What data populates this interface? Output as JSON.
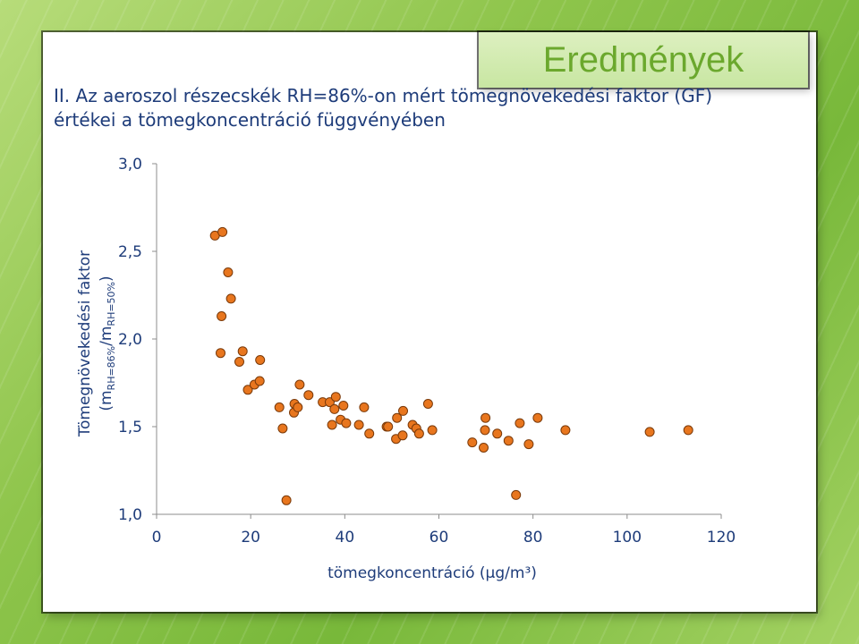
{
  "slide": {
    "title": "Eredmények",
    "heading_line1": "II. Az aeroszol részecskék RH=86%-on mért tömegnövekedési faktor (GF)",
    "heading_line2": "értékei a tömegkoncentráció függvényében"
  },
  "colors": {
    "marker_fill": "#e8761e",
    "marker_stroke": "#7a3a0a",
    "heading": "#1e3c7a",
    "title": "#6ba82d"
  },
  "chart_data": {
    "type": "scatter",
    "xlabel": "tömegkoncentráció (μg/m³)",
    "ylabel_main": "Tömegnövekedési faktor",
    "ylabel_paren": "(m",
    "ylabel_sub1": "RH=86%",
    "ylabel_mid": "/m",
    "ylabel_sub2": "RH=50%",
    "ylabel_close": ")",
    "xlim": [
      0,
      120
    ],
    "ylim": [
      1.0,
      3.0
    ],
    "x_ticks": [
      "0",
      "20",
      "40",
      "60",
      "80",
      "100",
      "120"
    ],
    "y_ticks": [
      "1,0",
      "1,5",
      "2,0",
      "2,5",
      "3,0"
    ],
    "grid": false,
    "points": [
      [
        12.4,
        2.59
      ],
      [
        14.0,
        2.61
      ],
      [
        13.6,
        1.92
      ],
      [
        13.8,
        2.13
      ],
      [
        15.2,
        2.38
      ],
      [
        15.8,
        2.23
      ],
      [
        17.6,
        1.87
      ],
      [
        18.3,
        1.93
      ],
      [
        19.4,
        1.71
      ],
      [
        20.8,
        1.74
      ],
      [
        21.9,
        1.76
      ],
      [
        22.0,
        1.88
      ],
      [
        26.1,
        1.61
      ],
      [
        26.8,
        1.49
      ],
      [
        27.6,
        1.08
      ],
      [
        29.2,
        1.58
      ],
      [
        29.3,
        1.63
      ],
      [
        30.0,
        1.61
      ],
      [
        30.4,
        1.74
      ],
      [
        32.3,
        1.68
      ],
      [
        35.3,
        1.64
      ],
      [
        36.8,
        1.64
      ],
      [
        37.3,
        1.51
      ],
      [
        37.8,
        1.6
      ],
      [
        38.1,
        1.67
      ],
      [
        39.1,
        1.54
      ],
      [
        39.7,
        1.62
      ],
      [
        40.3,
        1.52
      ],
      [
        43.0,
        1.51
      ],
      [
        44.1,
        1.61
      ],
      [
        45.2,
        1.46
      ],
      [
        48.9,
        1.5
      ],
      [
        49.2,
        1.5
      ],
      [
        50.9,
        1.43
      ],
      [
        51.1,
        1.55
      ],
      [
        52.3,
        1.45
      ],
      [
        52.4,
        1.59
      ],
      [
        54.4,
        1.51
      ],
      [
        55.2,
        1.49
      ],
      [
        55.8,
        1.46
      ],
      [
        57.7,
        1.63
      ],
      [
        58.6,
        1.48
      ],
      [
        67.1,
        1.41
      ],
      [
        69.5,
        1.38
      ],
      [
        69.8,
        1.48
      ],
      [
        69.9,
        1.55
      ],
      [
        72.4,
        1.46
      ],
      [
        74.8,
        1.42
      ],
      [
        76.4,
        1.11
      ],
      [
        77.2,
        1.52
      ],
      [
        79.1,
        1.4
      ],
      [
        81.0,
        1.55
      ],
      [
        86.9,
        1.48
      ],
      [
        104.8,
        1.47
      ],
      [
        113.0,
        1.48
      ]
    ]
  }
}
